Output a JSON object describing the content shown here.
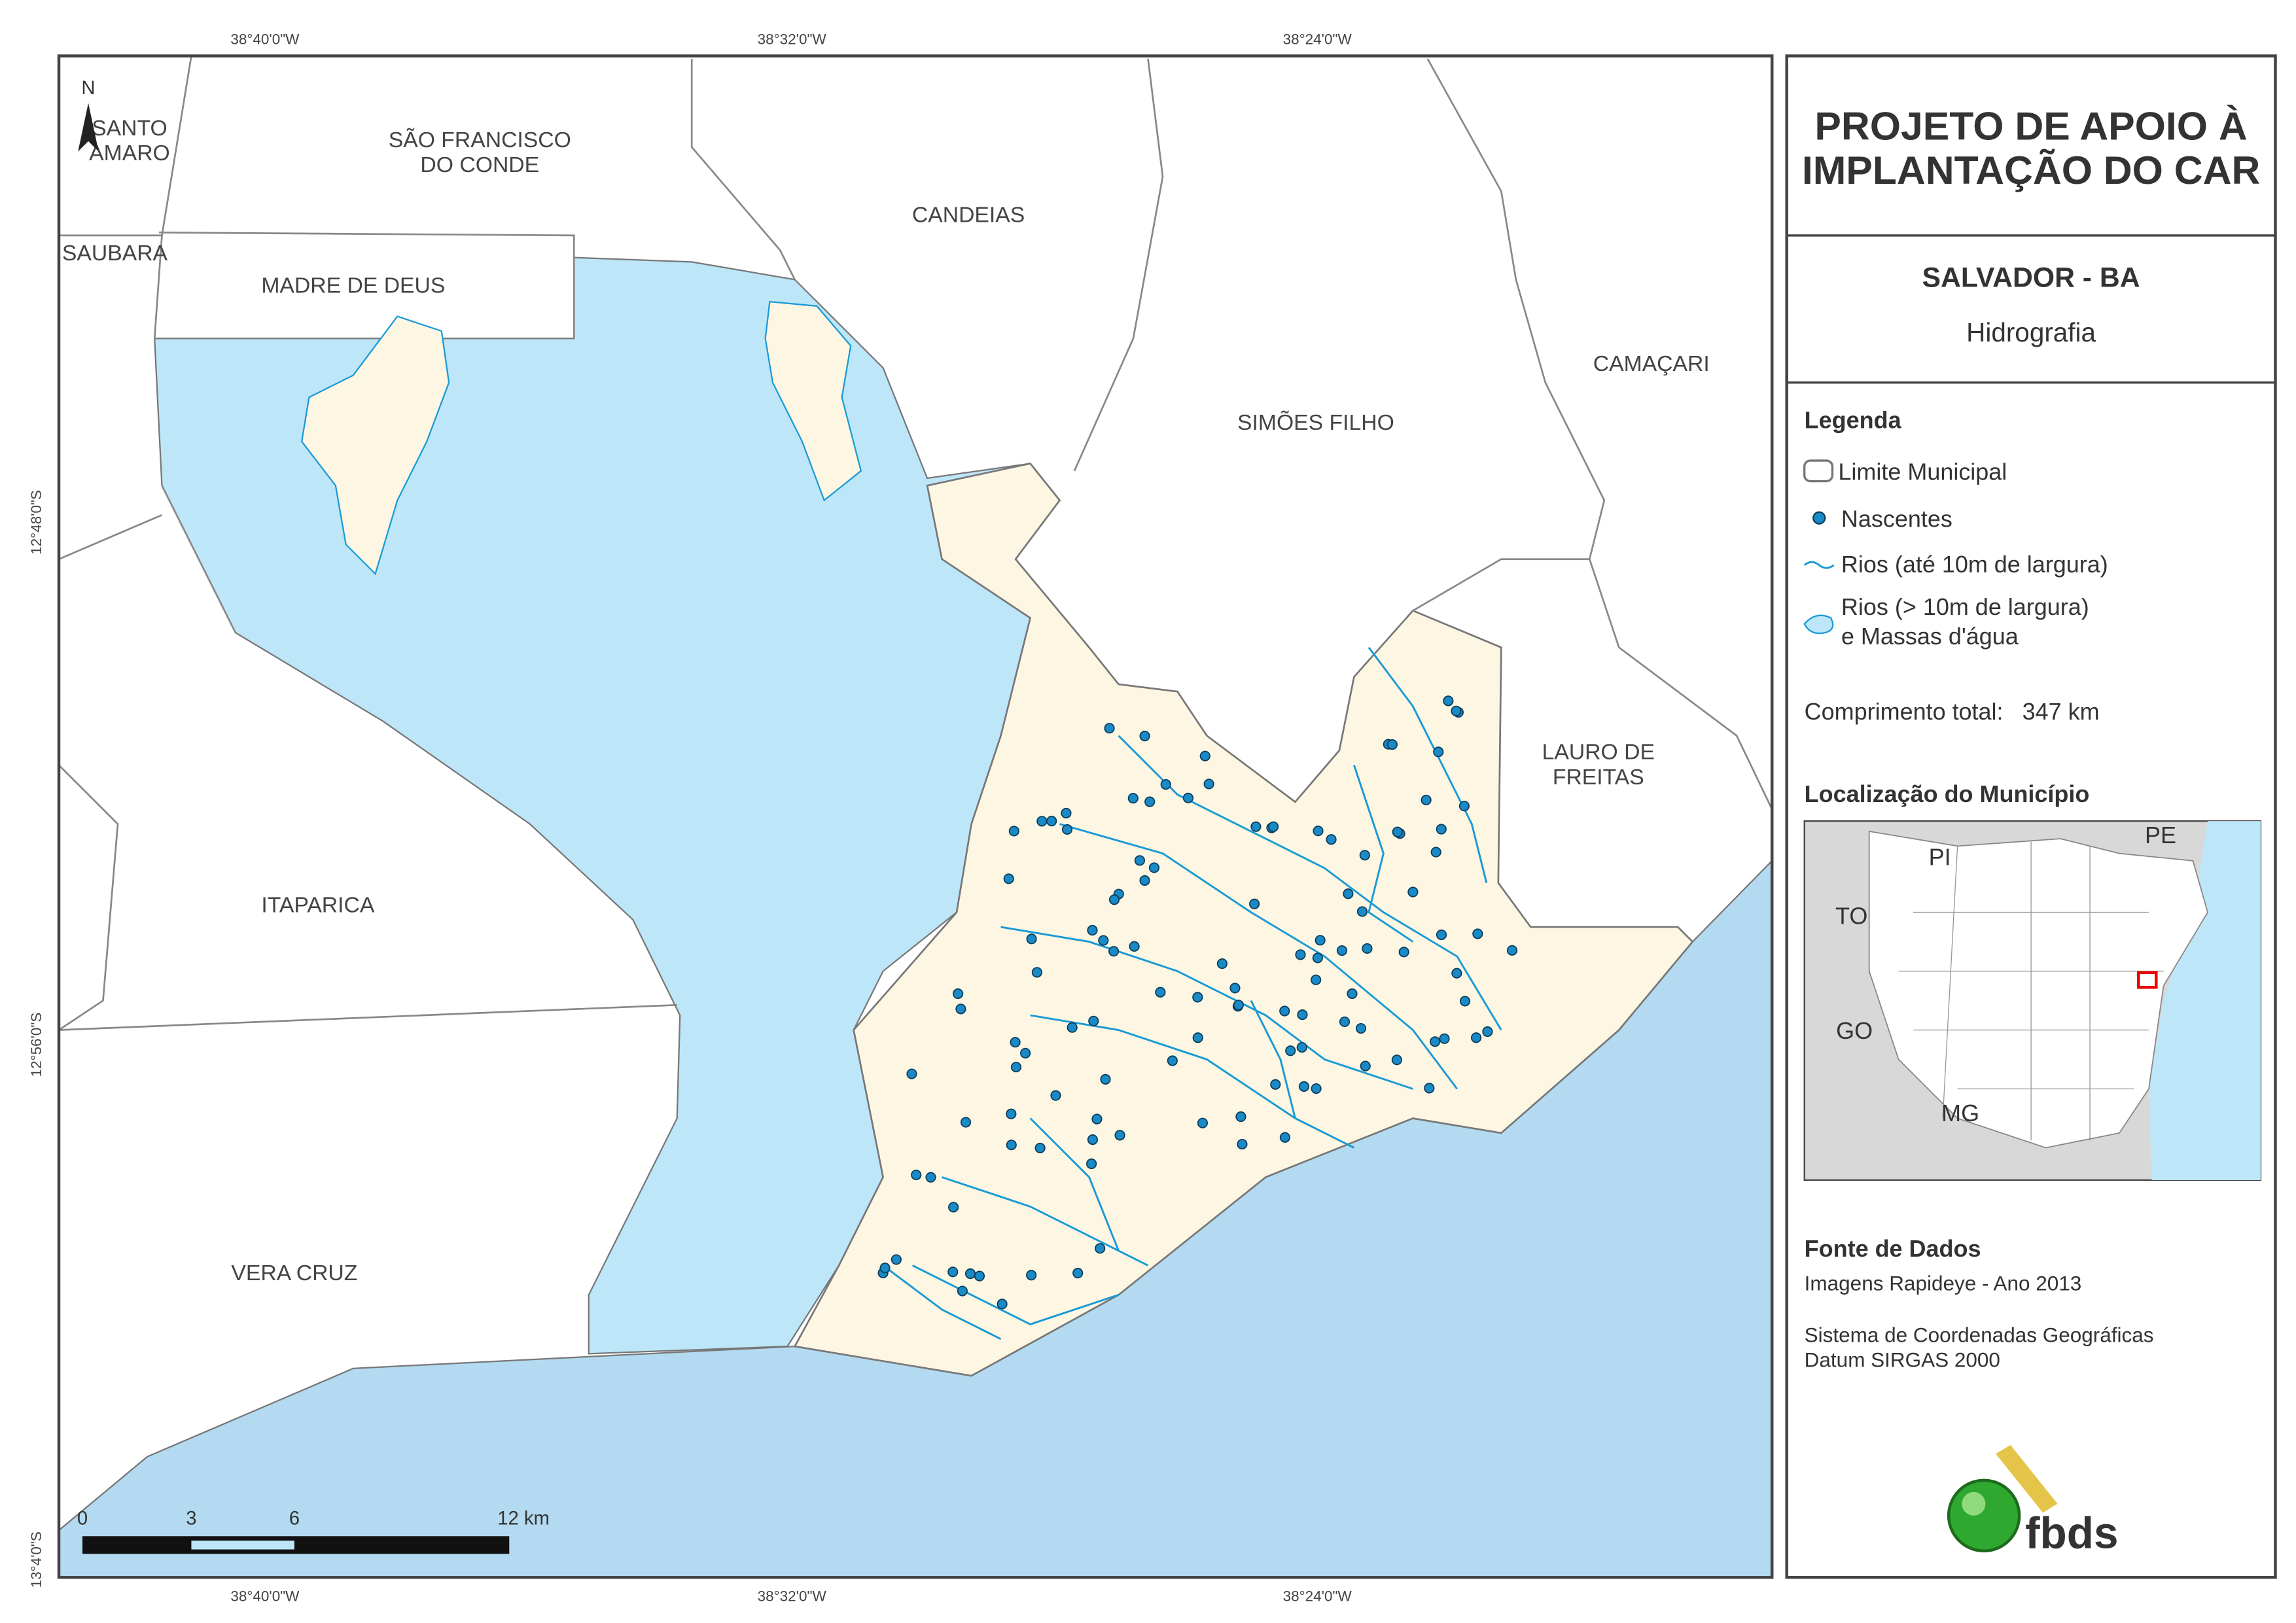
{
  "map": {
    "coordinates": {
      "top": [
        "38°40'0\"W",
        "38°32'0\"W",
        "38°24'0\"W"
      ],
      "bottom": [
        "38°40'0\"W",
        "38°32'0\"W",
        "38°24'0\"W"
      ],
      "left": [
        "12°48'0\"S",
        "12°56'0\"S",
        "13°4'0\"S"
      ]
    },
    "north": "N",
    "places": [
      {
        "lines": [
          "SANTO",
          "AMARO"
        ]
      },
      {
        "lines": [
          "SÃO FRANCISCO",
          "DO CONDE"
        ]
      },
      {
        "lines": [
          "SAUBARA"
        ]
      },
      {
        "lines": [
          "MADRE DE DEUS"
        ]
      },
      {
        "lines": [
          "CANDEIAS"
        ]
      },
      {
        "lines": [
          "CAMAÇARI"
        ]
      },
      {
        "lines": [
          "SIMÕES FILHO"
        ]
      },
      {
        "lines": [
          "LAURO DE",
          "FREITAS"
        ]
      },
      {
        "lines": [
          "ITAPARICA"
        ]
      },
      {
        "lines": [
          "VERA CRUZ"
        ]
      }
    ],
    "scale_bar": [
      "0",
      "3",
      "6",
      "12 km"
    ]
  },
  "panel": {
    "title": [
      "PROJETO DE APOIO À",
      "IMPLANTAÇÃO DO CAR"
    ],
    "subtitle": "SALVADOR - BA",
    "theme": "Hidrografia",
    "legend": {
      "title": "Legenda",
      "items": [
        {
          "lines": [
            "Limite Municipal"
          ]
        },
        {
          "lines": [
            "Nascentes"
          ]
        },
        {
          "lines": [
            "Rios (até 10m de largura)"
          ]
        },
        {
          "lines": [
            "Rios (> 10m de largura)",
            "e Massas d'água"
          ]
        }
      ]
    },
    "length": {
      "label": "Comprimento total:",
      "value": "347 km"
    },
    "location": {
      "title": "Localização do Município",
      "states": [
        "PI",
        "PE",
        "TO",
        "GO",
        "MG"
      ]
    },
    "sources": {
      "title": "Fonte de Dados",
      "lines": [
        "Imagens Rapideye - Ano 2013",
        "Sistema de Coordenadas Geográficas",
        "Datum SIRGAS 2000"
      ]
    },
    "logo": "fbds"
  }
}
